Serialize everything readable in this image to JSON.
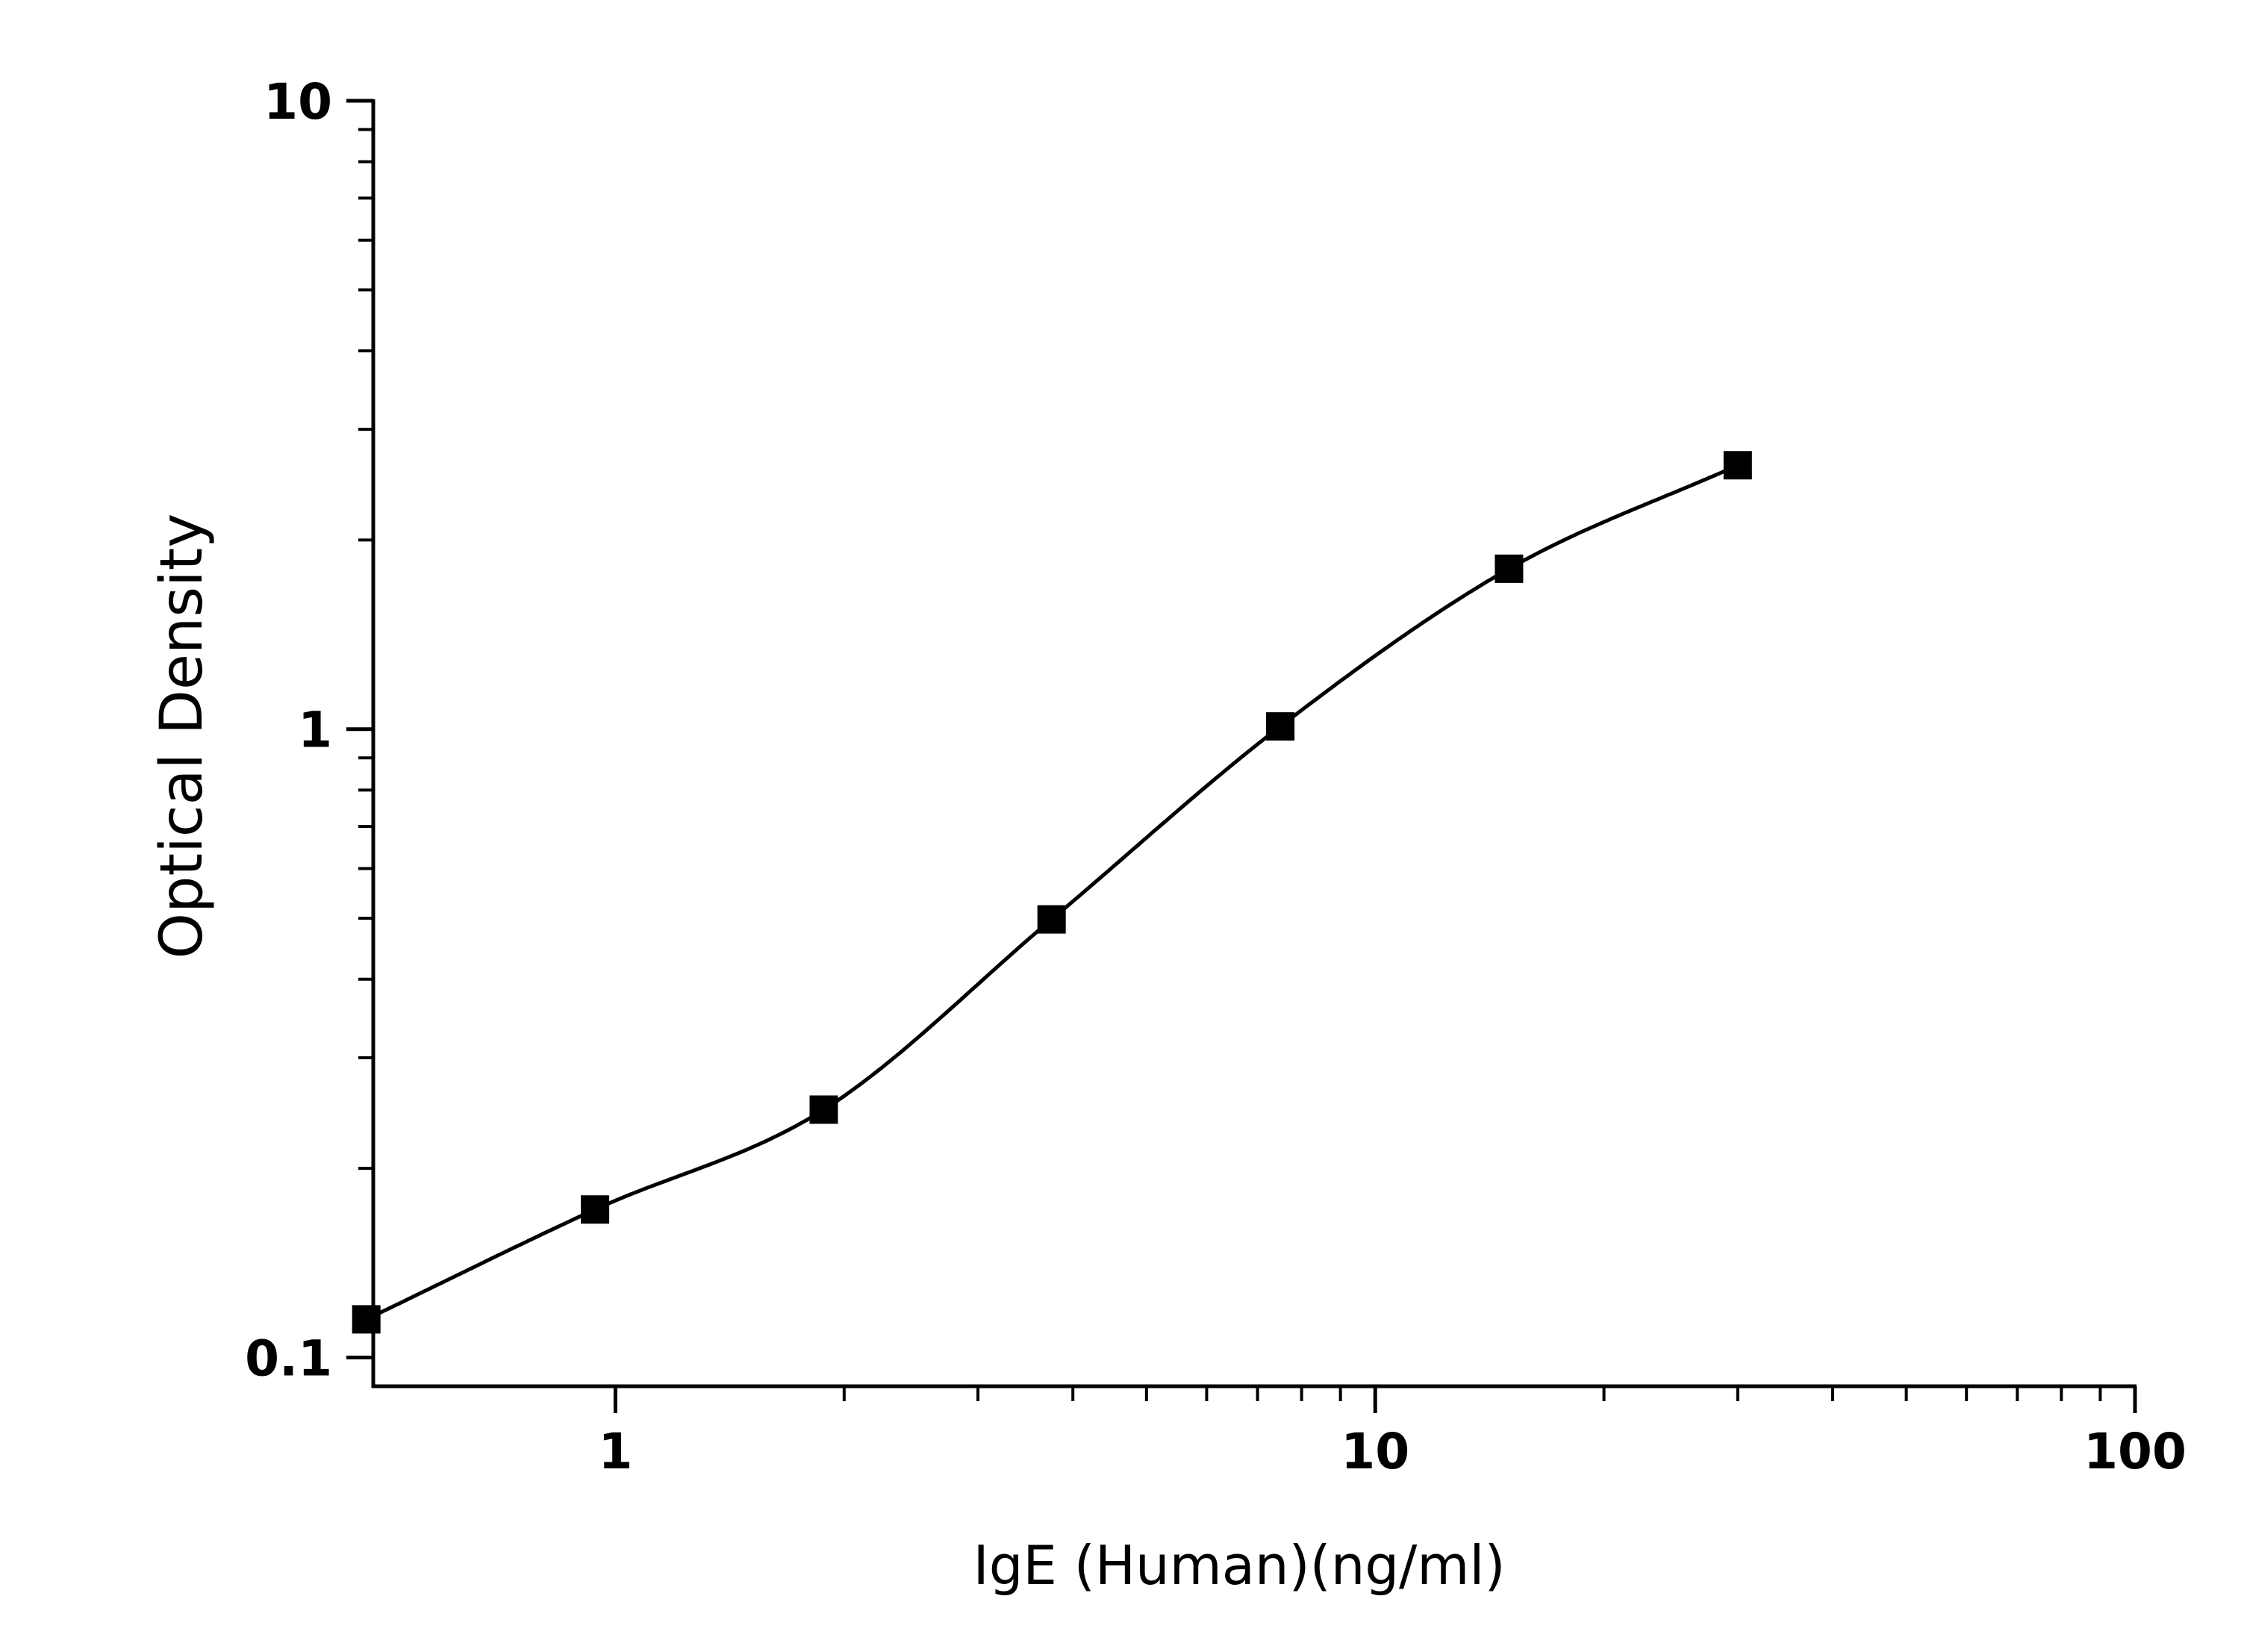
{
  "chart_data": {
    "type": "scatter",
    "xlabel": "IgE (Human)(ng/ml)",
    "ylabel": "Optical Density",
    "xscale": "log",
    "yscale": "log",
    "xlim": [
      0.48,
      100
    ],
    "ylim": [
      0.09,
      10
    ],
    "x_ticks": [
      {
        "value": 1,
        "label": "1"
      },
      {
        "value": 10,
        "label": "10"
      },
      {
        "value": 100,
        "label": "100"
      }
    ],
    "y_ticks": [
      {
        "value": 0.1,
        "label": "0.1"
      },
      {
        "value": 1,
        "label": "1"
      },
      {
        "value": 10,
        "label": "10"
      }
    ],
    "grid": false,
    "series": [
      {
        "marker": "square",
        "color": "#000000",
        "points": [
          {
            "x": 0.47,
            "y": 0.115
          },
          {
            "x": 0.94,
            "y": 0.172
          },
          {
            "x": 1.88,
            "y": 0.248
          },
          {
            "x": 3.75,
            "y": 0.498
          },
          {
            "x": 7.5,
            "y": 1.01
          },
          {
            "x": 15,
            "y": 1.8
          },
          {
            "x": 30,
            "y": 2.63
          }
        ]
      }
    ],
    "fit_curve": {
      "model": "four-parameter logistic",
      "color": "#000000",
      "x_range": [
        0.47,
        30
      ]
    }
  }
}
